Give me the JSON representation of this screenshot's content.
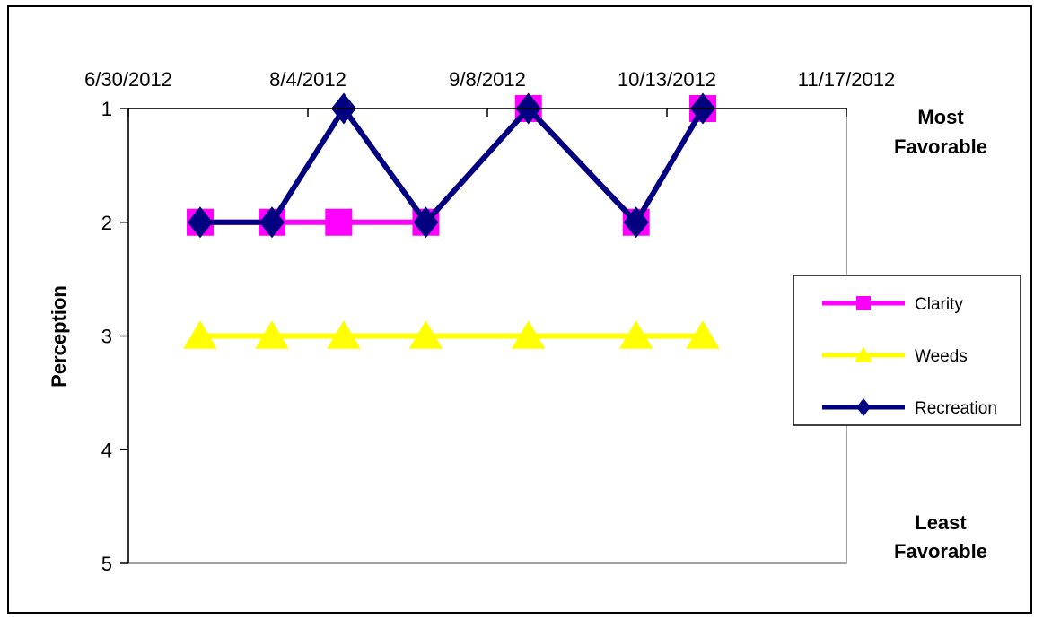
{
  "chart_data": {
    "type": "line",
    "title": "",
    "xlabel": "",
    "ylabel": "Perception",
    "x_axis": {
      "position": "top",
      "min": "6/30/2012",
      "max": "11/17/2012",
      "ticks": [
        "6/30/2012",
        "8/4/2012",
        "9/8/2012",
        "10/13/2012",
        "11/17/2012"
      ]
    },
    "y_axis": {
      "reversed": true,
      "min": 1,
      "max": 5,
      "ticks": [
        "1",
        "2",
        "3",
        "4",
        "5"
      ]
    },
    "annotations": {
      "top": [
        "Most",
        "Favorable"
      ],
      "bottom": [
        "Least",
        "Favorable"
      ]
    },
    "legend": {
      "position": "right"
    },
    "series": [
      {
        "name": "Clarity",
        "color": "#FF00FF",
        "marker": "square",
        "points": [
          {
            "x": "2012-07-14",
            "y": 2
          },
          {
            "x": "2012-07-28",
            "y": 2
          },
          {
            "x": "2012-08-10",
            "y": 2
          },
          {
            "x": "2012-08-27",
            "y": 2
          },
          {
            "x": "2012-09-16",
            "y": 1
          },
          {
            "x": "2012-10-07",
            "y": 2
          },
          {
            "x": "2012-10-20",
            "y": 1
          }
        ]
      },
      {
        "name": "Weeds",
        "color": "#FFFF00",
        "marker": "triangle",
        "points": [
          {
            "x": "2012-07-14",
            "y": 3
          },
          {
            "x": "2012-07-28",
            "y": 3
          },
          {
            "x": "2012-08-11",
            "y": 3
          },
          {
            "x": "2012-08-27",
            "y": 3
          },
          {
            "x": "2012-09-16",
            "y": 3
          },
          {
            "x": "2012-10-07",
            "y": 3
          },
          {
            "x": "2012-10-20",
            "y": 3
          }
        ]
      },
      {
        "name": "Recreation",
        "color": "#000080",
        "marker": "diamond",
        "points": [
          {
            "x": "2012-07-14",
            "y": 2
          },
          {
            "x": "2012-07-28",
            "y": 2
          },
          {
            "x": "2012-08-11",
            "y": 1
          },
          {
            "x": "2012-08-27",
            "y": 2
          },
          {
            "x": "2012-09-16",
            "y": 1
          },
          {
            "x": "2012-10-07",
            "y": 2
          },
          {
            "x": "2012-10-20",
            "y": 1
          }
        ]
      }
    ]
  }
}
